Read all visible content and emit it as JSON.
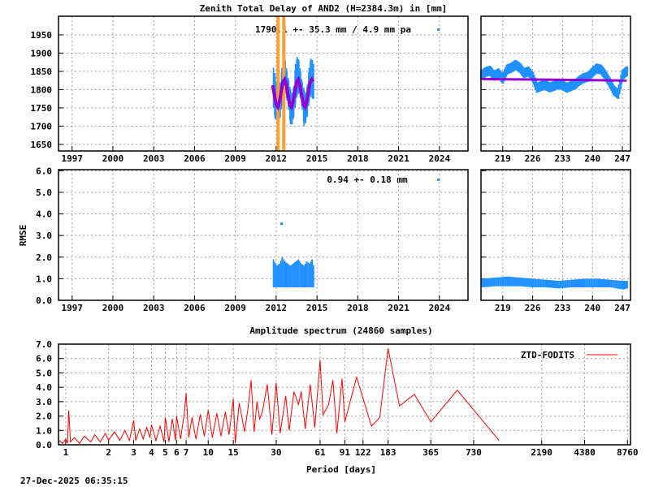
{
  "footer_timestamp": "27-Dec-2025 06:35:15",
  "colors": {
    "observations": "#1e90ff",
    "fit": "#9400d3",
    "breaks": "#ff9f30",
    "spectrum": "#ff0000",
    "grid": "#a0a0a0"
  },
  "chart_data": [
    {
      "id": "ztd-series",
      "type": "scatter",
      "title": "Zenith Total Delay of AND2 (H=2384.3m) in [mm]",
      "annotation": "1790.1 +-  35.3 mm /  4.9 mm pa",
      "xlim": [
        1996,
        2026.1
      ],
      "ylim": [
        1632,
        2001
      ],
      "xticks": [
        1997,
        2000,
        2003,
        2006,
        2009,
        2012,
        2015,
        2018,
        2021,
        2024
      ],
      "yticks": [
        1650,
        1700,
        1750,
        1800,
        1850,
        1900,
        1950
      ],
      "grid": true,
      "breaks": [
        2012.14,
        2012.56
      ],
      "observations_range": [
        [
          2011.75,
          1750,
          1860
        ],
        [
          2011.875,
          1720,
          1840
        ],
        [
          2012.0,
          1715,
          1810
        ],
        [
          2012.125,
          1712,
          1800
        ],
        [
          2012.25,
          1725,
          1820
        ],
        [
          2012.375,
          1755,
          1860
        ],
        [
          2012.5,
          1780,
          1905
        ],
        [
          2012.625,
          1790,
          1880
        ],
        [
          2012.75,
          1770,
          1850
        ],
        [
          2012.875,
          1745,
          1825
        ],
        [
          2013.0,
          1705,
          1800
        ],
        [
          2013.125,
          1705,
          1790
        ],
        [
          2013.25,
          1725,
          1810
        ],
        [
          2013.375,
          1760,
          1870
        ],
        [
          2013.5,
          1785,
          1890
        ],
        [
          2013.625,
          1790,
          1880
        ],
        [
          2013.75,
          1775,
          1850
        ],
        [
          2013.875,
          1745,
          1820
        ],
        [
          2014.0,
          1700,
          1800
        ],
        [
          2014.125,
          1710,
          1790
        ],
        [
          2014.25,
          1730,
          1815
        ],
        [
          2014.375,
          1765,
          1860
        ],
        [
          2014.5,
          1785,
          1885
        ],
        [
          2014.625,
          1775,
          1880
        ],
        [
          2014.7,
          1775,
          1870
        ]
      ],
      "fit": [
        [
          2011.75,
          1812
        ],
        [
          2011.875,
          1784
        ],
        [
          2012.0,
          1759
        ],
        [
          2012.125,
          1752
        ],
        [
          2012.25,
          1768
        ],
        [
          2012.375,
          1796
        ],
        [
          2012.5,
          1821
        ],
        [
          2012.625,
          1828
        ],
        [
          2012.75,
          1812
        ],
        [
          2012.875,
          1784
        ],
        [
          2013.0,
          1759
        ],
        [
          2013.125,
          1752
        ],
        [
          2013.25,
          1768
        ],
        [
          2013.375,
          1796
        ],
        [
          2013.5,
          1821
        ],
        [
          2013.625,
          1828
        ],
        [
          2013.75,
          1812
        ],
        [
          2013.875,
          1784
        ],
        [
          2014.0,
          1759
        ],
        [
          2014.125,
          1752
        ],
        [
          2014.25,
          1768
        ],
        [
          2014.375,
          1796
        ],
        [
          2014.5,
          1821
        ],
        [
          2014.625,
          1828
        ],
        [
          2014.7,
          1822
        ]
      ]
    },
    {
      "id": "ztd-recent",
      "type": "scatter",
      "xlim": [
        213.9,
        248.9
      ],
      "ylim": [
        1632,
        2001
      ],
      "xticks": [
        219,
        226,
        233,
        240,
        247
      ],
      "grid": true,
      "observations": [
        [
          214,
          1840
        ],
        [
          215,
          1848
        ],
        [
          216,
          1852
        ],
        [
          217,
          1838
        ],
        [
          218,
          1845
        ],
        [
          219,
          1830
        ],
        [
          220,
          1855
        ],
        [
          221,
          1860
        ],
        [
          222,
          1868
        ],
        [
          223,
          1860
        ],
        [
          224,
          1845
        ],
        [
          225,
          1850
        ],
        [
          226,
          1835
        ],
        [
          227,
          1805
        ],
        [
          228,
          1810
        ],
        [
          229,
          1812
        ],
        [
          230,
          1806
        ],
        [
          231,
          1810
        ],
        [
          232,
          1815
        ],
        [
          233,
          1812
        ],
        [
          234,
          1805
        ],
        [
          235,
          1810
        ],
        [
          236,
          1815
        ],
        [
          237,
          1825
        ],
        [
          238,
          1832
        ],
        [
          239,
          1835
        ],
        [
          240,
          1848
        ],
        [
          241,
          1858
        ],
        [
          242,
          1855
        ],
        [
          243,
          1840
        ],
        [
          244,
          1820
        ],
        [
          245,
          1798
        ],
        [
          246,
          1788
        ],
        [
          247,
          1840
        ],
        [
          248,
          1850
        ]
      ],
      "fit": [
        [
          214,
          1829
        ],
        [
          248,
          1825
        ]
      ]
    },
    {
      "id": "rmse-series",
      "type": "scatter",
      "ylabel": "RMSE",
      "annotation": "0.94 +-   0.18 mm",
      "xlim": [
        1996,
        2026.1
      ],
      "ylim": [
        0,
        6.05
      ],
      "xticks": [
        1997,
        2000,
        2003,
        2006,
        2009,
        2012,
        2015,
        2018,
        2021,
        2024
      ],
      "yticks": [
        "0.0",
        "1.0",
        "2.0",
        "3.0",
        "4.0",
        "5.0",
        "6.0"
      ],
      "grid": true,
      "observations_range": [
        [
          2011.75,
          0.6,
          1.9
        ],
        [
          2011.9,
          0.6,
          1.7
        ],
        [
          2012.0,
          0.6,
          1.6
        ],
        [
          2012.2,
          0.6,
          1.7
        ],
        [
          2012.4,
          0.6,
          2.0
        ],
        [
          2012.6,
          0.6,
          1.8
        ],
        [
          2012.8,
          0.6,
          1.7
        ],
        [
          2013.0,
          0.6,
          1.6
        ],
        [
          2013.2,
          0.6,
          1.7
        ],
        [
          2013.4,
          0.6,
          1.8
        ],
        [
          2013.6,
          0.6,
          1.9
        ],
        [
          2013.8,
          0.6,
          1.7
        ],
        [
          2014.0,
          0.6,
          1.6
        ],
        [
          2014.2,
          0.6,
          1.8
        ],
        [
          2014.4,
          0.6,
          1.7
        ],
        [
          2014.6,
          0.6,
          1.9
        ],
        [
          2014.7,
          0.6,
          1.6
        ]
      ],
      "outliers": [
        [
          2012.4,
          3.55
        ]
      ]
    },
    {
      "id": "rmse-recent",
      "type": "scatter",
      "xlim": [
        213.9,
        248.9
      ],
      "ylim": [
        0,
        6.05
      ],
      "xticks": [
        219,
        226,
        233,
        240,
        247
      ],
      "grid": true,
      "observations_range": [
        [
          214,
          0.6,
          1.0
        ],
        [
          217,
          0.65,
          1.05
        ],
        [
          220,
          0.65,
          1.1
        ],
        [
          223,
          0.65,
          1.05
        ],
        [
          226,
          0.6,
          1.0
        ],
        [
          229,
          0.6,
          0.95
        ],
        [
          232,
          0.55,
          0.9
        ],
        [
          235,
          0.6,
          0.95
        ],
        [
          238,
          0.6,
          1.0
        ],
        [
          241,
          0.6,
          1.0
        ],
        [
          244,
          0.6,
          0.95
        ],
        [
          247,
          0.5,
          0.9
        ],
        [
          248,
          0.55,
          0.9
        ]
      ]
    },
    {
      "id": "amplitude-spectrum",
      "type": "line",
      "title": "Amplitude spectrum (24860 samples)",
      "xlabel": "Period [days]",
      "xscale": "log",
      "xlim": [
        0.89,
        9200
      ],
      "ylim": [
        0,
        7
      ],
      "xticks": [
        1,
        2,
        3,
        4,
        5,
        6,
        7,
        10,
        15,
        30,
        61,
        91,
        122,
        183,
        365,
        730,
        2190,
        4380,
        8760
      ],
      "yticks": [
        "0.0",
        "1.0",
        "2.0",
        "3.0",
        "4.0",
        "5.0",
        "6.0",
        "7.0"
      ],
      "grid": true,
      "legend": {
        "label": "ZTD-FODITS",
        "position": "top-right"
      },
      "points": [
        [
          0.9,
          0.3
        ],
        [
          0.95,
          0.1
        ],
        [
          1.0,
          0.4
        ],
        [
          1.03,
          0.1
        ],
        [
          1.05,
          2.4
        ],
        [
          1.08,
          0.2
        ],
        [
          1.15,
          0.5
        ],
        [
          1.25,
          0.1
        ],
        [
          1.35,
          0.6
        ],
        [
          1.5,
          0.2
        ],
        [
          1.6,
          0.7
        ],
        [
          1.75,
          0.2
        ],
        [
          1.9,
          0.8
        ],
        [
          2.0,
          0.3
        ],
        [
          2.2,
          0.9
        ],
        [
          2.4,
          0.3
        ],
        [
          2.6,
          1.0
        ],
        [
          2.8,
          0.3
        ],
        [
          3.0,
          1.7
        ],
        [
          3.1,
          0.3
        ],
        [
          3.3,
          1.1
        ],
        [
          3.5,
          0.4
        ],
        [
          3.7,
          1.2
        ],
        [
          3.9,
          0.5
        ],
        [
          4.0,
          1.4
        ],
        [
          4.3,
          0.3
        ],
        [
          4.6,
          1.3
        ],
        [
          4.9,
          0.2
        ],
        [
          5.0,
          1.9
        ],
        [
          5.3,
          0.2
        ],
        [
          5.6,
          1.8
        ],
        [
          5.9,
          0.3
        ],
        [
          6.0,
          2.0
        ],
        [
          6.4,
          0.4
        ],
        [
          6.8,
          2.2
        ],
        [
          7.0,
          3.6
        ],
        [
          7.3,
          0.5
        ],
        [
          7.7,
          1.9
        ],
        [
          8.2,
          0.4
        ],
        [
          8.8,
          2.1
        ],
        [
          9.4,
          0.6
        ],
        [
          10.0,
          2.4
        ],
        [
          10.7,
          0.5
        ],
        [
          11.5,
          2.2
        ],
        [
          12.3,
          0.6
        ],
        [
          13.2,
          2.3
        ],
        [
          14.0,
          0.7
        ],
        [
          15.0,
          3.2
        ],
        [
          15.5,
          0.1
        ],
        [
          16.5,
          2.9
        ],
        [
          18.0,
          0.9
        ],
        [
          19.0,
          2.5
        ],
        [
          20.0,
          4.5
        ],
        [
          21.0,
          0.9
        ],
        [
          22.0,
          3.0
        ],
        [
          23.0,
          1.8
        ],
        [
          24.0,
          2.3
        ],
        [
          26.0,
          4.2
        ],
        [
          28.0,
          0.7
        ],
        [
          30.0,
          4.3
        ],
        [
          32.0,
          0.8
        ],
        [
          35.0,
          3.4
        ],
        [
          37.0,
          1.0
        ],
        [
          40.0,
          3.7
        ],
        [
          43.0,
          2.8
        ],
        [
          45.0,
          3.7
        ],
        [
          48.0,
          1.1
        ],
        [
          52.0,
          4.2
        ],
        [
          56.0,
          1.2
        ],
        [
          61.0,
          5.9
        ],
        [
          64.0,
          2.1
        ],
        [
          70.0,
          2.8
        ],
        [
          75.0,
          4.5
        ],
        [
          80.0,
          0.8
        ],
        [
          87.0,
          4.6
        ],
        [
          91.0,
          1.6
        ],
        [
          110.0,
          4.7
        ],
        [
          140.0,
          1.3
        ],
        [
          160.0,
          1.9
        ],
        [
          183.0,
          6.7
        ],
        [
          220.0,
          2.7
        ],
        [
          280.0,
          3.5
        ],
        [
          365.0,
          1.6
        ],
        [
          560.0,
          3.8
        ],
        [
          1100.0,
          0.3
        ]
      ]
    }
  ]
}
